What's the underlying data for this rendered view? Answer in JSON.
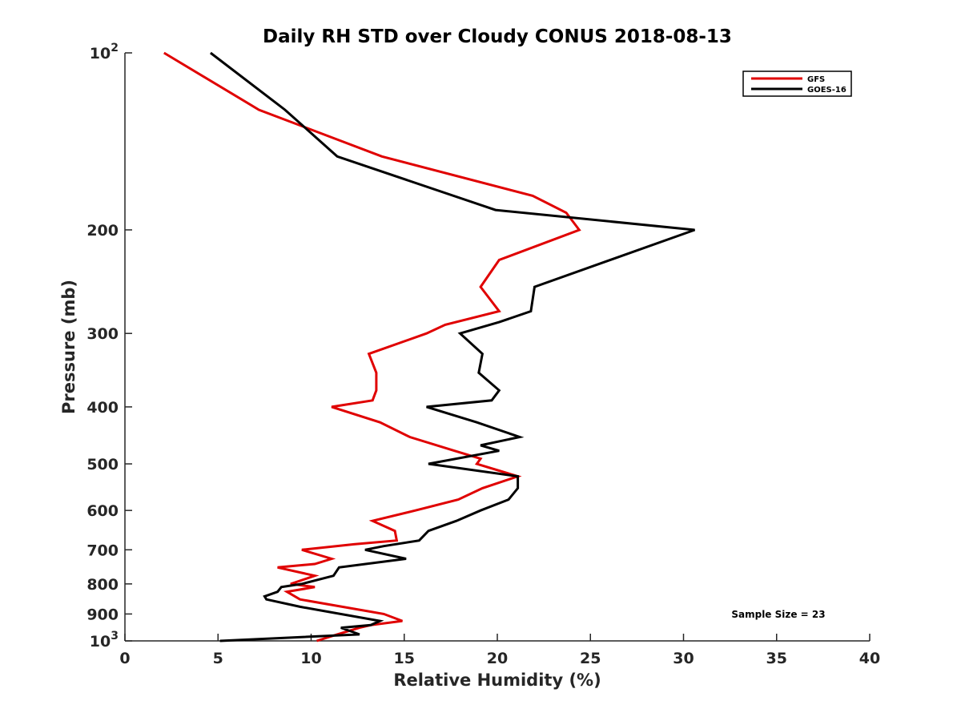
{
  "chart_data": {
    "type": "line",
    "title": "Daily RH STD over Cloudy CONUS 2018-08-13",
    "xlabel": "Relative Humidity (%)",
    "ylabel": "Pressure (mb)",
    "xlim": [
      0,
      40
    ],
    "ylim": [
      1000,
      100
    ],
    "y_scale": "log",
    "y_inverted": true,
    "x_ticks": [
      0,
      5,
      10,
      15,
      20,
      25,
      30,
      35,
      40
    ],
    "x_tick_labels": [
      "0",
      "5",
      "10",
      "15",
      "20",
      "25",
      "30",
      "35",
      "40"
    ],
    "y_ticks": [
      100,
      200,
      300,
      400,
      500,
      600,
      700,
      800,
      900,
      1000
    ],
    "y_tick_labels": [
      {
        "base": "10",
        "exp": "2"
      },
      {
        "base": "200",
        "exp": ""
      },
      {
        "base": "300",
        "exp": ""
      },
      {
        "base": "400",
        "exp": ""
      },
      {
        "base": "500",
        "exp": ""
      },
      {
        "base": "600",
        "exp": ""
      },
      {
        "base": "700",
        "exp": ""
      },
      {
        "base": "800",
        "exp": ""
      },
      {
        "base": "900",
        "exp": ""
      },
      {
        "base": "10",
        "exp": "3"
      }
    ],
    "grid": false,
    "legend_position": "top-right",
    "annotation": "Sample Size = 23",
    "series": [
      {
        "name": "GFS",
        "color": "#e00000",
        "points": [
          [
            2.1,
            100
          ],
          [
            7.2,
            125
          ],
          [
            13.8,
            150
          ],
          [
            21.9,
            175
          ],
          [
            23.7,
            187
          ],
          [
            24.4,
            200
          ],
          [
            20.1,
            225
          ],
          [
            19.1,
            250
          ],
          [
            20.1,
            275
          ],
          [
            17.2,
            290
          ],
          [
            16.2,
            300
          ],
          [
            13.1,
            325
          ],
          [
            13.5,
            350
          ],
          [
            13.5,
            375
          ],
          [
            13.3,
            390
          ],
          [
            11.1,
            400
          ],
          [
            13.7,
            425
          ],
          [
            15.3,
            450
          ],
          [
            17.7,
            475
          ],
          [
            19.1,
            490
          ],
          [
            18.9,
            500
          ],
          [
            21.1,
            525
          ],
          [
            19.2,
            550
          ],
          [
            17.9,
            575
          ],
          [
            15.6,
            600
          ],
          [
            13.3,
            625
          ],
          [
            14.5,
            650
          ],
          [
            14.6,
            675
          ],
          [
            12.3,
            685
          ],
          [
            9.5,
            700
          ],
          [
            11.1,
            725
          ],
          [
            10.2,
            740
          ],
          [
            8.2,
            750
          ],
          [
            10.2,
            775
          ],
          [
            8.9,
            800
          ],
          [
            10.2,
            810
          ],
          [
            8.7,
            825
          ],
          [
            9.4,
            850
          ],
          [
            13.9,
            900
          ],
          [
            14.9,
            925
          ],
          [
            13.2,
            940
          ],
          [
            12.6,
            950
          ],
          [
            11.4,
            975
          ],
          [
            10.3,
            1000
          ]
        ]
      },
      {
        "name": "GOES-16",
        "color": "#000000",
        "points": [
          [
            4.6,
            100
          ],
          [
            8.6,
            125
          ],
          [
            11.4,
            150
          ],
          [
            19.9,
            185
          ],
          [
            30.6,
            200
          ],
          [
            22.0,
            250
          ],
          [
            21.8,
            275
          ],
          [
            20.1,
            287
          ],
          [
            18.0,
            300
          ],
          [
            19.2,
            325
          ],
          [
            19.0,
            350
          ],
          [
            20.1,
            375
          ],
          [
            19.7,
            390
          ],
          [
            16.2,
            400
          ],
          [
            18.9,
            425
          ],
          [
            21.2,
            450
          ],
          [
            19.1,
            465
          ],
          [
            20.1,
            475
          ],
          [
            16.3,
            500
          ],
          [
            21.1,
            525
          ],
          [
            21.1,
            550
          ],
          [
            20.6,
            575
          ],
          [
            19.1,
            600
          ],
          [
            17.8,
            625
          ],
          [
            16.3,
            650
          ],
          [
            15.8,
            675
          ],
          [
            13.9,
            690
          ],
          [
            12.9,
            700
          ],
          [
            15.1,
            725
          ],
          [
            11.5,
            750
          ],
          [
            11.2,
            775
          ],
          [
            9.5,
            800
          ],
          [
            8.4,
            810
          ],
          [
            8.2,
            825
          ],
          [
            7.5,
            840
          ],
          [
            7.6,
            850
          ],
          [
            9.4,
            875
          ],
          [
            13.7,
            925
          ],
          [
            13.2,
            940
          ],
          [
            11.6,
            950
          ],
          [
            12.6,
            975
          ],
          [
            5.1,
            1000
          ]
        ]
      }
    ]
  }
}
